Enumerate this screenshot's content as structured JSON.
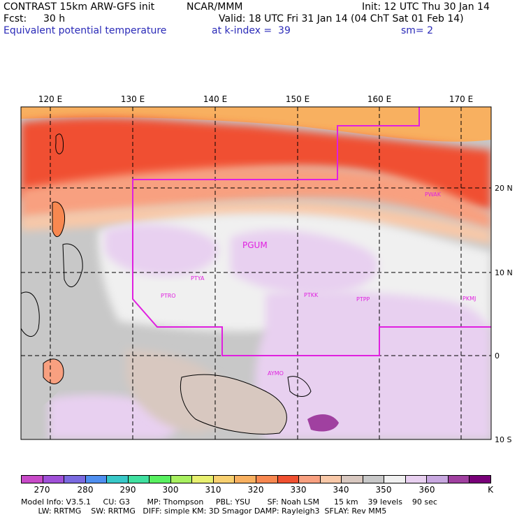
{
  "header": {
    "model": "CONTRAST 15km ARW-GFS init",
    "org": "NCAR/MMM",
    "init": "Init: 12 UTC Thu 30 Jan 14",
    "fcst_label": "Fcst:",
    "fcst_value": "30 h",
    "valid": "Valid: 18 UTC Fri 31 Jan 14 (04 ChT Sat 01 Feb 14)",
    "field": "Equivalent potential temperature",
    "level": "at k-index =  39",
    "smoothing": "sm= 2"
  },
  "axes": {
    "lon_labels": [
      "120 E",
      "130 E",
      "140 E",
      "150 E",
      "160 E",
      "170 E"
    ],
    "lat_labels": [
      "20 N",
      "10 N",
      "0",
      "10 S"
    ]
  },
  "stations": [
    "PGUM",
    "PTYA",
    "PTRO",
    "PTKK",
    "PTPP",
    "PKMJ",
    "PWAK",
    "AYMO"
  ],
  "colorbar": {
    "labels": [
      "270",
      "280",
      "290",
      "300",
      "310",
      "320",
      "330",
      "340",
      "350",
      "360"
    ],
    "unit": "K",
    "colors": [
      "#c84ac8",
      "#a050d8",
      "#7a6ae0",
      "#4f8ff0",
      "#38c8c8",
      "#40e0a0",
      "#58f060",
      "#a8f060",
      "#e8f070",
      "#f8d070",
      "#f8b060",
      "#f88850",
      "#f05030",
      "#f8a080",
      "#f8c8a8",
      "#d8c8c0",
      "#c8c8c8",
      "#f0f0f0",
      "#e8d0f0",
      "#c8a8e0",
      "#a040a0",
      "#780078"
    ]
  },
  "footer": {
    "line1": "Model Info: V3.5.1     CU: G3       MP: Thompson     PBL: YSU       SF: Noah LSM      15 km    39 levels    90 sec",
    "line2": "       LW: RRTMG    SW: RRTMG   DIFF: simple KM: 3D Smagor DAMP: Rayleigh3  SFLAY: Rev MM5"
  }
}
